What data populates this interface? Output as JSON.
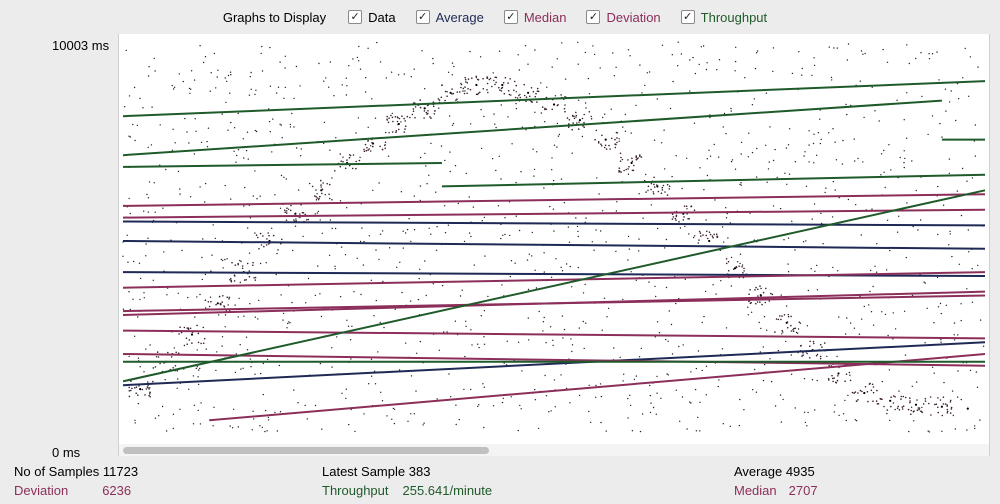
{
  "legend": {
    "title": "Graphs to Display",
    "items": [
      {
        "label": "Data",
        "color": "#000000",
        "checked": true
      },
      {
        "label": "Average",
        "color": "#1e2a55",
        "checked": true
      },
      {
        "label": "Median",
        "color": "#8c2e5a",
        "checked": true
      },
      {
        "label": "Deviation",
        "color": "#8c2e5a",
        "checked": true
      },
      {
        "label": "Throughput",
        "color": "#1f5a2a",
        "checked": true
      }
    ]
  },
  "axis": {
    "y_max_label": "10003 ms",
    "y_min_label": "0 ms"
  },
  "stats": {
    "samples_label": "No of Samples",
    "samples_value": "11723",
    "deviation_label": "Deviation",
    "deviation_value": "6236",
    "latest_label": "Latest Sample",
    "latest_value": "383",
    "throughput_label": "Throughput",
    "throughput_value": "255.641/minute",
    "average_label": "Average",
    "average_value": "4935",
    "median_label": "Median",
    "median_value": "2707"
  },
  "chart_data": {
    "type": "scatter",
    "ylim": [
      0,
      10003
    ],
    "xlim": [
      0,
      100
    ],
    "grid": false,
    "legend_placement": "top",
    "series": [
      {
        "name": "Data",
        "role": "data",
        "color": "#000000",
        "points": [
          [
            2,
            1100
          ],
          [
            5,
            1800
          ],
          [
            8,
            2500
          ],
          [
            11,
            3300
          ],
          [
            14,
            4100
          ],
          [
            17,
            4900
          ],
          [
            20,
            5600
          ],
          [
            23,
            6200
          ],
          [
            26,
            6900
          ],
          [
            29,
            7400
          ],
          [
            32,
            7900
          ],
          [
            35,
            8300
          ],
          [
            38,
            8700
          ],
          [
            41,
            8900
          ],
          [
            44,
            8900
          ],
          [
            47,
            8700
          ],
          [
            50,
            8400
          ],
          [
            53,
            8000
          ],
          [
            56,
            7500
          ],
          [
            59,
            6900
          ],
          [
            62,
            6300
          ],
          [
            65,
            5600
          ],
          [
            68,
            4900
          ],
          [
            71,
            4200
          ],
          [
            74,
            3500
          ],
          [
            77,
            2800
          ],
          [
            80,
            2100
          ],
          [
            83,
            1500
          ],
          [
            86,
            1000
          ],
          [
            89,
            800
          ],
          [
            92,
            700
          ],
          [
            95,
            650
          ],
          [
            98,
            600
          ]
        ]
      },
      {
        "name": "Average",
        "role": "line",
        "color": "#1e2a55",
        "segments": [
          [
            [
              0,
              5400
            ],
            [
              100,
              5300
            ]
          ],
          [
            [
              0,
              4900
            ],
            [
              100,
              4700
            ]
          ],
          [
            [
              0,
              4100
            ],
            [
              100,
              4000
            ]
          ],
          [
            [
              0,
              1200
            ],
            [
              100,
              2300
            ]
          ]
        ]
      },
      {
        "name": "Median",
        "role": "line",
        "color": "#8c2e5a",
        "segments": [
          [
            [
              0,
              5800
            ],
            [
              100,
              6100
            ]
          ],
          [
            [
              0,
              5500
            ],
            [
              100,
              5700
            ]
          ],
          [
            [
              0,
              3700
            ],
            [
              100,
              4100
            ]
          ],
          [
            [
              0,
              3000
            ],
            [
              100,
              3600
            ]
          ],
          [
            [
              0,
              2600
            ],
            [
              100,
              2400
            ]
          ]
        ]
      },
      {
        "name": "Deviation",
        "role": "line",
        "color": "#8c2e5a",
        "segments": [
          [
            [
              0,
              3100
            ],
            [
              100,
              3500
            ]
          ],
          [
            [
              10,
              300
            ],
            [
              100,
              2000
            ]
          ],
          [
            [
              0,
              2000
            ],
            [
              100,
              1700
            ]
          ]
        ]
      },
      {
        "name": "Throughput",
        "role": "line",
        "color": "#1f5a2a",
        "segments": [
          [
            [
              0,
              8100
            ],
            [
              100,
              9000
            ]
          ],
          [
            [
              0,
              7100
            ],
            [
              95,
              8500
            ]
          ],
          [
            [
              0,
              6800
            ],
            [
              37,
              6900
            ]
          ],
          [
            [
              37,
              6300
            ],
            [
              100,
              6600
            ]
          ],
          [
            [
              0,
              1300
            ],
            [
              100,
              6200
            ]
          ],
          [
            [
              0,
              1800
            ],
            [
              100,
              1800
            ]
          ],
          [
            [
              95,
              7500
            ],
            [
              100,
              7500
            ]
          ]
        ]
      }
    ]
  }
}
